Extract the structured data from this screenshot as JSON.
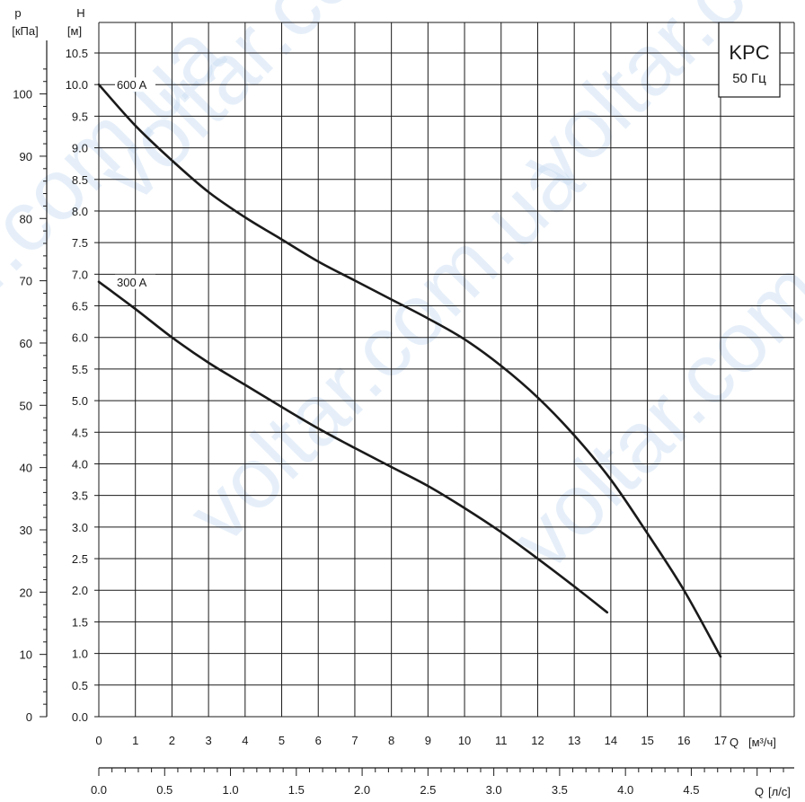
{
  "chart_data": {
    "type": "line",
    "legend_box": {
      "title": "KPC",
      "subtitle": "50 Гц"
    },
    "watermark": "voltar.com.ua",
    "axes": {
      "p": {
        "symbol": "p",
        "unit": "[кПа]",
        "ticks": [
          "0",
          "10",
          "20",
          "30",
          "40",
          "50",
          "60",
          "70",
          "80",
          "90",
          "100"
        ]
      },
      "h": {
        "symbol": "H",
        "unit": "[м]",
        "range": [
          0,
          10.5
        ],
        "ticks": [
          "0.0",
          "0.5",
          "1.0",
          "1.5",
          "2.0",
          "2.5",
          "3.0",
          "3.5",
          "4.0",
          "4.5",
          "5.0",
          "5.5",
          "6.0",
          "6.5",
          "7.0",
          "7.5",
          "8.0",
          "8.5",
          "9.0",
          "9.5",
          "10.0",
          "10.5"
        ]
      },
      "q_m3h": {
        "symbol": "Q",
        "unit": "[м³/ч]",
        "range": [
          0,
          17
        ],
        "ticks": [
          "0",
          "1",
          "2",
          "3",
          "4",
          "5",
          "6",
          "7",
          "8",
          "9",
          "10",
          "11",
          "12",
          "13",
          "14",
          "15",
          "16",
          "17"
        ]
      },
      "q_ls": {
        "symbol": "Q",
        "unit": "[л/с]",
        "ticks": [
          "0.0",
          "0.5",
          "1.0",
          "1.5",
          "2.0",
          "2.5",
          "3.0",
          "3.5",
          "4.0",
          "4.5"
        ]
      }
    },
    "grid": true,
    "series": [
      {
        "name": "600 A",
        "x": [
          0,
          1,
          2,
          3,
          4,
          5,
          6,
          7,
          8,
          9,
          10,
          11,
          12,
          13,
          14,
          15,
          16,
          17
        ],
        "y": [
          10.0,
          9.35,
          8.8,
          8.3,
          7.9,
          7.55,
          7.2,
          6.9,
          6.6,
          6.3,
          5.97,
          5.55,
          5.05,
          4.45,
          3.75,
          2.9,
          2.0,
          0.95
        ]
      },
      {
        "name": "300 A",
        "x": [
          0,
          1,
          2,
          3,
          4,
          5,
          6,
          7,
          8,
          9,
          10,
          11,
          12,
          13,
          13.9
        ],
        "y": [
          6.88,
          6.45,
          6.0,
          5.6,
          5.25,
          4.9,
          4.56,
          4.25,
          3.95,
          3.65,
          3.3,
          2.92,
          2.5,
          2.06,
          1.65
        ]
      }
    ]
  }
}
